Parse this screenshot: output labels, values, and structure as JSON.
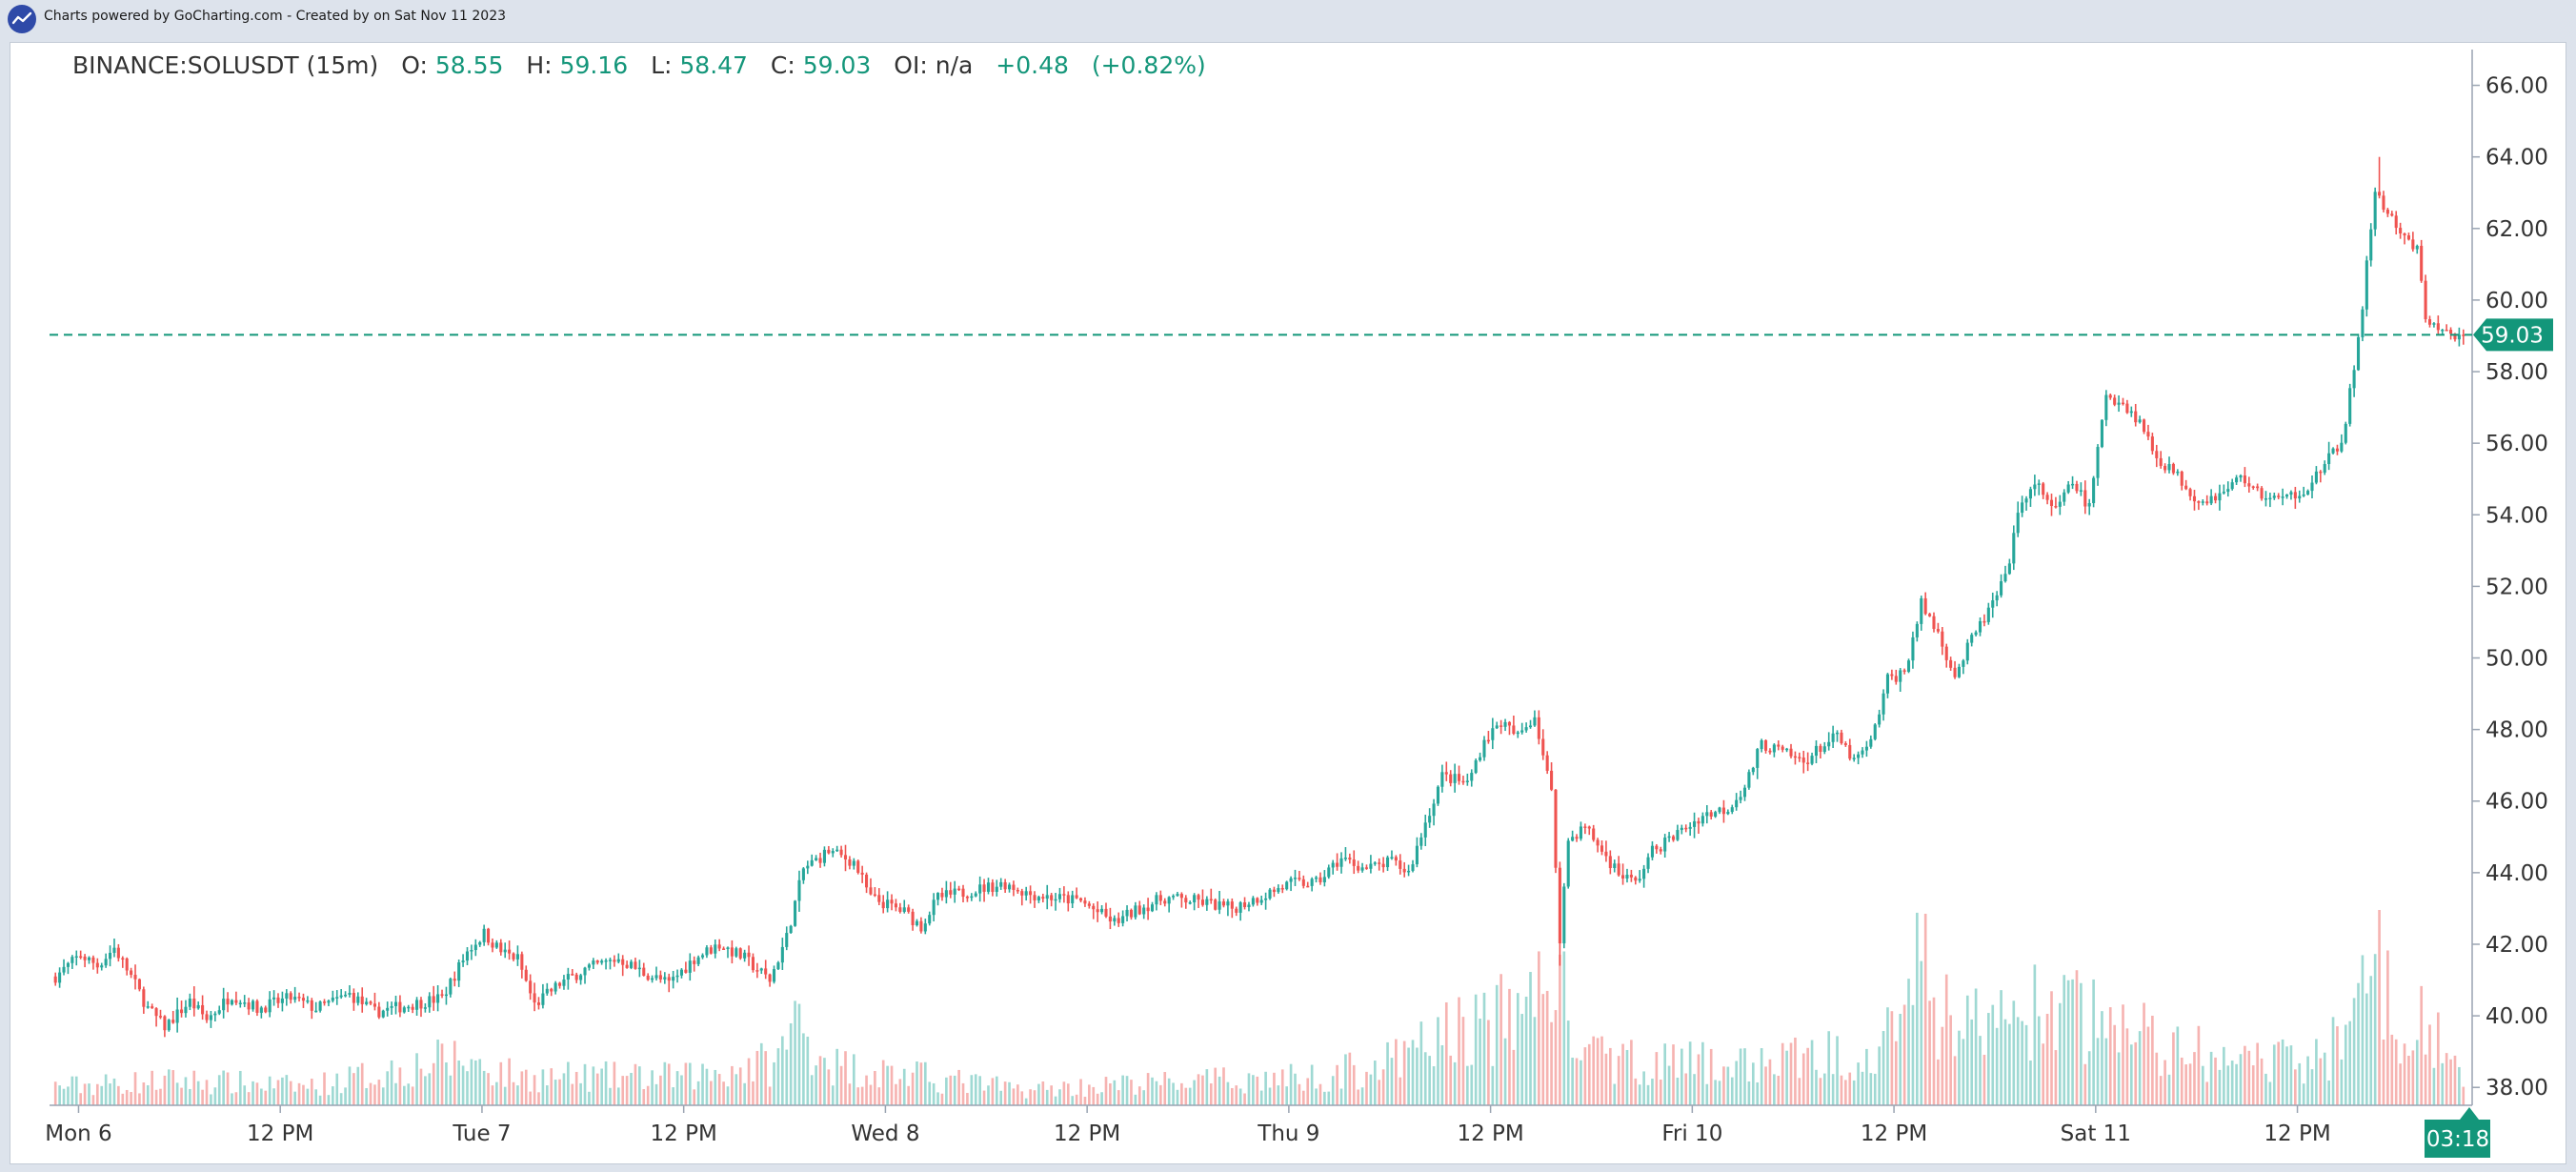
{
  "credit": "Charts powered by GoCharting.com - Created by  on Sat Nov 11 2023",
  "legend": {
    "symbol": "BINANCE:SOLUSDT (15m)",
    "o_label": "O:",
    "o_value": "58.55",
    "h_label": "H:",
    "h_value": "59.16",
    "l_label": "L:",
    "l_value": "58.47",
    "c_label": "C:",
    "c_value": "59.03",
    "oi_label": "OI:",
    "oi_value": "n/a",
    "change": "+0.48",
    "change_pct": "(+0.82%)"
  },
  "last_price_tag": "59.03",
  "countdown_tag": "03:18",
  "colors": {
    "up": "#26a69a",
    "down": "#ef5350",
    "accent": "#13967a",
    "axis": "#333333"
  },
  "chart_data": {
    "type": "candlestick",
    "interval": "15m",
    "symbol": "BINANCE:SOLUSDT",
    "ylim": [
      37.5,
      67.0
    ],
    "yticks": [
      "38.00",
      "40.00",
      "42.00",
      "44.00",
      "46.00",
      "48.00",
      "50.00",
      "52.00",
      "54.00",
      "56.00",
      "58.00",
      "60.00",
      "62.00",
      "64.00",
      "66.00"
    ],
    "xticks": [
      "Mon 6",
      "12 PM",
      "Tue 7",
      "12 PM",
      "Wed 8",
      "12 PM",
      "Thu 9",
      "12 PM",
      "Fri 10",
      "12 PM",
      "Sat 11",
      "12 PM"
    ],
    "last_price": 59.03,
    "price_path": [
      [
        0,
        41.1
      ],
      [
        6,
        41.7
      ],
      [
        10,
        41.4
      ],
      [
        14,
        41.9
      ],
      [
        18,
        41.1
      ],
      [
        22,
        40.2
      ],
      [
        26,
        39.7
      ],
      [
        32,
        40.4
      ],
      [
        36,
        39.9
      ],
      [
        42,
        40.6
      ],
      [
        48,
        40.2
      ],
      [
        56,
        40.5
      ],
      [
        62,
        40.2
      ],
      [
        70,
        40.6
      ],
      [
        76,
        40.1
      ],
      [
        84,
        40.3
      ],
      [
        92,
        40.5
      ],
      [
        98,
        41.8
      ],
      [
        102,
        42.3
      ],
      [
        106,
        41.8
      ],
      [
        110,
        41.6
      ],
      [
        114,
        40.3
      ],
      [
        120,
        40.9
      ],
      [
        126,
        41.3
      ],
      [
        134,
        41.6
      ],
      [
        140,
        41.2
      ],
      [
        146,
        40.9
      ],
      [
        152,
        41.6
      ],
      [
        158,
        42.0
      ],
      [
        164,
        41.6
      ],
      [
        170,
        41.0
      ],
      [
        174,
        42.2
      ],
      [
        178,
        44.1
      ],
      [
        184,
        44.6
      ],
      [
        190,
        44.3
      ],
      [
        194,
        43.3
      ],
      [
        202,
        42.9
      ],
      [
        206,
        42.5
      ],
      [
        210,
        43.3
      ],
      [
        218,
        43.5
      ],
      [
        226,
        43.7
      ],
      [
        232,
        43.4
      ],
      [
        238,
        43.3
      ],
      [
        244,
        43.2
      ],
      [
        252,
        42.6
      ],
      [
        258,
        43.0
      ],
      [
        264,
        43.3
      ],
      [
        272,
        43.2
      ],
      [
        280,
        43.0
      ],
      [
        288,
        43.4
      ],
      [
        294,
        43.7
      ],
      [
        300,
        43.7
      ],
      [
        306,
        44.4
      ],
      [
        312,
        44.1
      ],
      [
        318,
        44.3
      ],
      [
        322,
        44.0
      ],
      [
        326,
        45.4
      ],
      [
        330,
        46.7
      ],
      [
        336,
        46.5
      ],
      [
        340,
        47.7
      ],
      [
        344,
        48.2
      ],
      [
        348,
        47.8
      ],
      [
        352,
        48.4
      ],
      [
        356,
        46.2
      ],
      [
        358,
        42.2
      ],
      [
        360,
        44.9
      ],
      [
        364,
        45.3
      ],
      [
        368,
        44.6
      ],
      [
        372,
        44.0
      ],
      [
        376,
        43.7
      ],
      [
        380,
        44.6
      ],
      [
        386,
        45.1
      ],
      [
        392,
        45.6
      ],
      [
        398,
        45.8
      ],
      [
        402,
        46.4
      ],
      [
        406,
        47.6
      ],
      [
        412,
        47.3
      ],
      [
        416,
        47.1
      ],
      [
        420,
        47.5
      ],
      [
        424,
        47.8
      ],
      [
        428,
        47.1
      ],
      [
        432,
        47.6
      ],
      [
        436,
        49.4
      ],
      [
        440,
        49.6
      ],
      [
        444,
        51.5
      ],
      [
        448,
        50.7
      ],
      [
        452,
        49.5
      ],
      [
        456,
        50.5
      ],
      [
        460,
        51.3
      ],
      [
        464,
        52.2
      ],
      [
        468,
        54.5
      ],
      [
        472,
        54.8
      ],
      [
        476,
        54.1
      ],
      [
        480,
        54.9
      ],
      [
        484,
        54.2
      ],
      [
        488,
        57.4
      ],
      [
        492,
        57.1
      ],
      [
        496,
        56.6
      ],
      [
        500,
        55.6
      ],
      [
        504,
        55.2
      ],
      [
        510,
        54.4
      ],
      [
        516,
        54.6
      ],
      [
        520,
        55.1
      ],
      [
        524,
        54.6
      ],
      [
        530,
        54.4
      ],
      [
        536,
        54.8
      ],
      [
        540,
        55.4
      ],
      [
        544,
        56.0
      ],
      [
        548,
        58.8
      ],
      [
        552,
        63.1
      ],
      [
        554,
        62.6
      ],
      [
        558,
        61.8
      ],
      [
        562,
        61.4
      ],
      [
        564,
        59.5
      ],
      [
        568,
        59.1
      ],
      [
        573,
        59.03
      ]
    ],
    "volume_path": [
      [
        0,
        0.12
      ],
      [
        30,
        0.16
      ],
      [
        60,
        0.12
      ],
      [
        96,
        0.3
      ],
      [
        110,
        0.18
      ],
      [
        150,
        0.18
      ],
      [
        172,
        0.28
      ],
      [
        176,
        0.55
      ],
      [
        180,
        0.4
      ],
      [
        186,
        0.25
      ],
      [
        230,
        0.1
      ],
      [
        260,
        0.14
      ],
      [
        300,
        0.18
      ],
      [
        320,
        0.28
      ],
      [
        330,
        0.45
      ],
      [
        345,
        0.55
      ],
      [
        352,
        0.7
      ],
      [
        356,
        0.95
      ],
      [
        360,
        0.55
      ],
      [
        364,
        0.3
      ],
      [
        400,
        0.25
      ],
      [
        430,
        0.35
      ],
      [
        444,
        0.85
      ],
      [
        448,
        0.6
      ],
      [
        460,
        0.5
      ],
      [
        470,
        0.6
      ],
      [
        488,
        0.55
      ],
      [
        500,
        0.4
      ],
      [
        520,
        0.25
      ],
      [
        540,
        0.3
      ],
      [
        548,
        0.75
      ],
      [
        552,
        0.95
      ],
      [
        556,
        0.6
      ],
      [
        562,
        0.55
      ],
      [
        568,
        0.35
      ],
      [
        573,
        0.15
      ]
    ]
  }
}
